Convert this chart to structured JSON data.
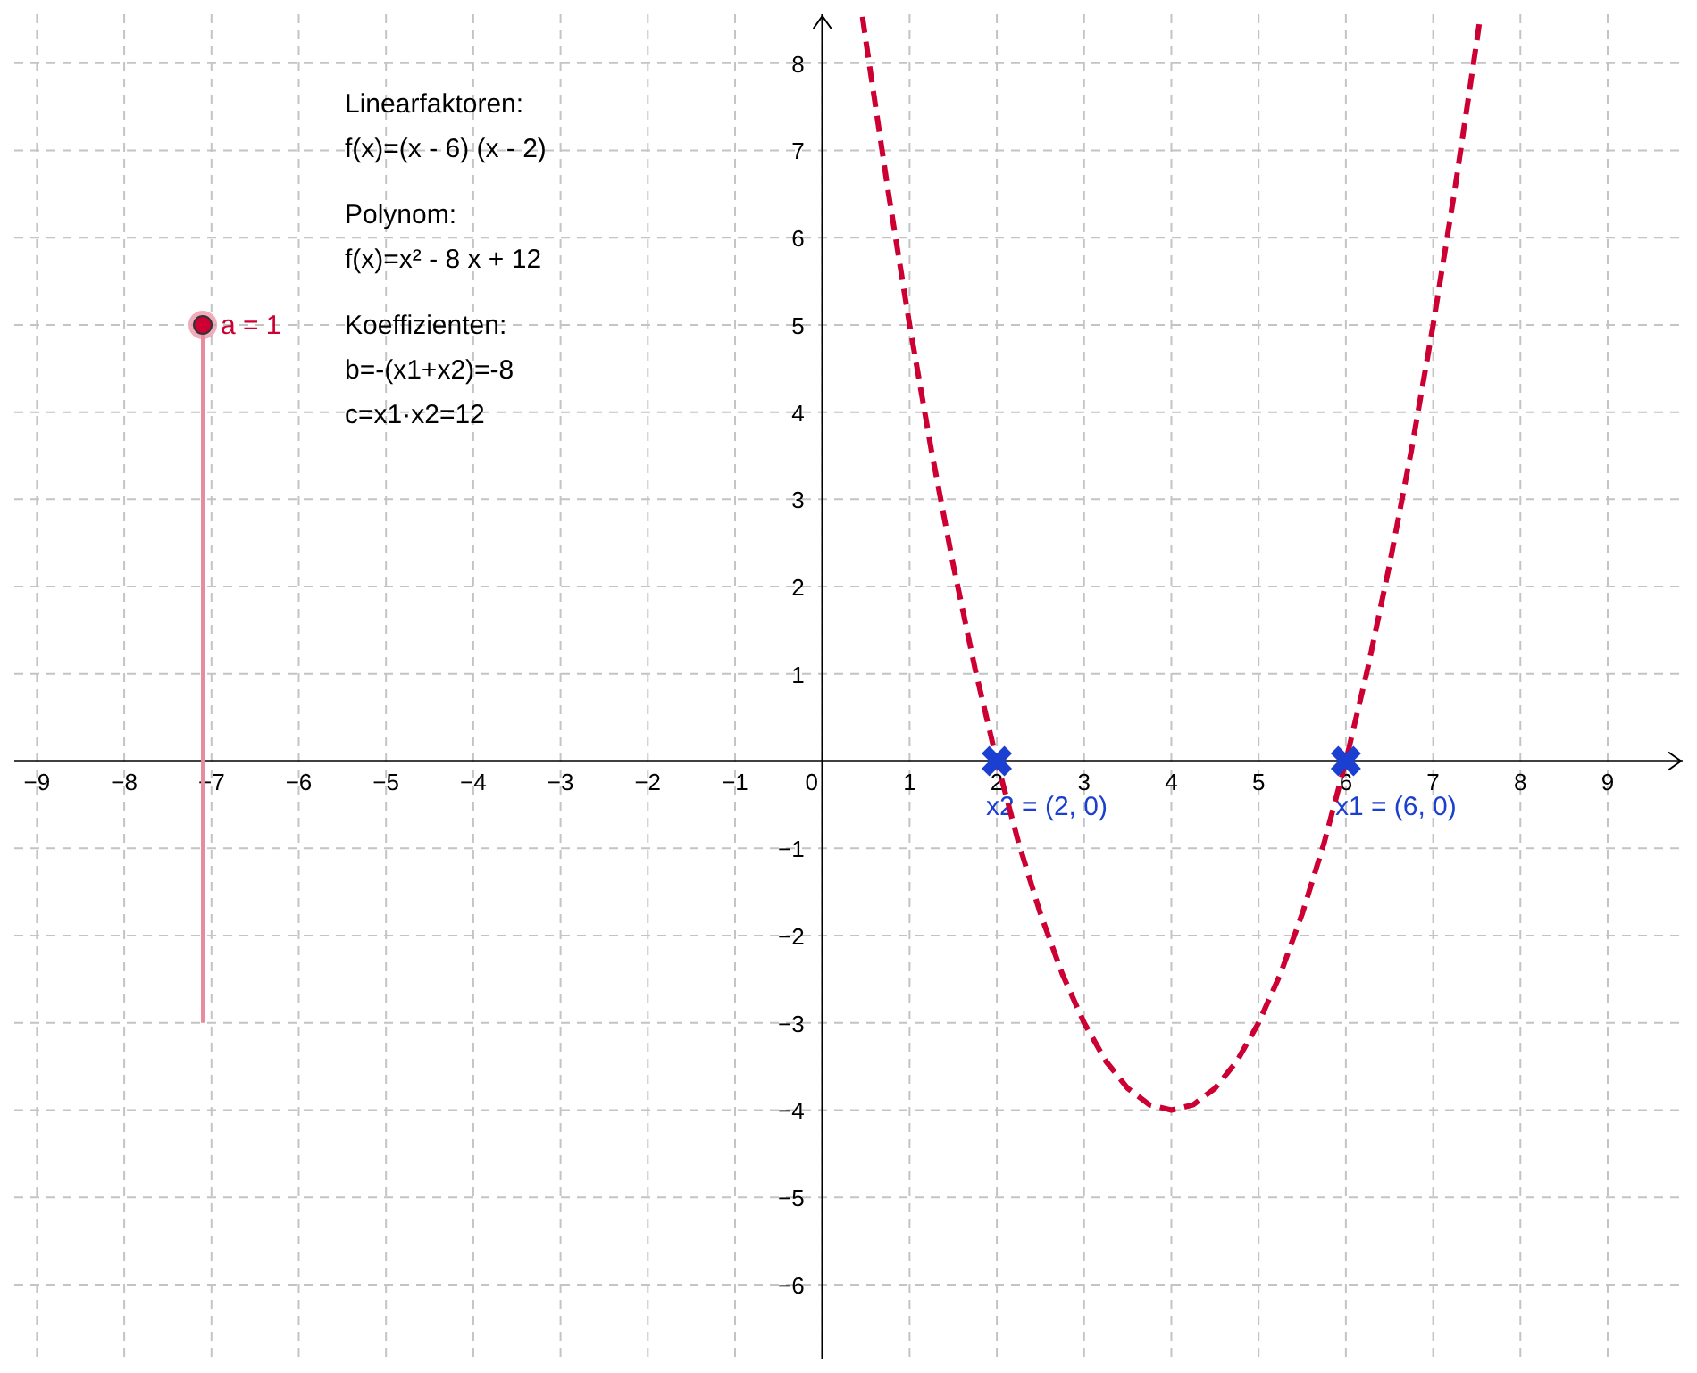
{
  "chart_data": {
    "type": "line",
    "annotations": [
      "Linearfaktoren:",
      "f(x)=(x - 6) (x - 2)",
      "Polynom:",
      "f(x)=x² - 8 x + 12",
      "Koeffizienten:",
      "b=-(x1+x2)=-8",
      "c=x1·x2=12",
      "a = 1",
      {
        "text": "x2 = (2, 0)",
        "x": 2,
        "y": 0
      },
      {
        "text": "x1 = (6, 0)",
        "x": 6,
        "y": 0
      }
    ],
    "series": [
      {
        "color": "#cc0033",
        "line_style": "dashed",
        "marker": "none",
        "x": [
          0.46,
          0.5,
          0.75,
          1,
          1.25,
          1.5,
          1.75,
          2,
          2.25,
          2.5,
          2.75,
          3,
          3.25,
          3.5,
          3.75,
          4,
          4.25,
          4.5,
          4.75,
          5,
          5.25,
          5.5,
          5.75,
          6,
          6.25,
          6.5,
          6.75,
          7,
          7.25,
          7.5,
          7.54
        ],
        "values": [
          8.53,
          8.25,
          6.56,
          5,
          3.56,
          2.25,
          1.06,
          0,
          -0.94,
          -1.75,
          -2.44,
          -3,
          -3.44,
          -3.75,
          -3.94,
          -4,
          -3.94,
          -3.75,
          -3.44,
          -3,
          -2.44,
          -1.75,
          -0.94,
          0,
          1.06,
          2.25,
          3.56,
          5,
          6.56,
          8.25,
          8.53
        ]
      },
      {
        "type": "scatter",
        "color": "#1b3fd0",
        "marker": "cross",
        "x": [
          2,
          6
        ],
        "values": [
          0,
          0
        ]
      }
    ],
    "xlim": [
      -9.26,
      9.86
    ],
    "ylim": [
      -6.85,
      8.56
    ],
    "xticks": [
      {
        "value": -9,
        "label": "−9"
      },
      {
        "value": -8,
        "label": "−8"
      },
      {
        "value": -7,
        "label": "−7"
      },
      {
        "value": -6,
        "label": "−6"
      },
      {
        "value": -5,
        "label": "−5"
      },
      {
        "value": -4,
        "label": "−4"
      },
      {
        "value": -3,
        "label": "−3"
      },
      {
        "value": -2,
        "label": "−2"
      },
      {
        "value": -1,
        "label": "−1"
      },
      0,
      1,
      2,
      3,
      4,
      5,
      6,
      7,
      8,
      9
    ],
    "yticks": [
      {
        "value": -6,
        "label": "−6"
      },
      {
        "value": -5,
        "label": "−5"
      },
      {
        "value": -4,
        "label": "−4"
      },
      {
        "value": -3,
        "label": "−3"
      },
      {
        "value": -2,
        "label": "−2"
      },
      {
        "value": -1,
        "label": "−1"
      },
      1,
      2,
      3,
      4,
      5,
      6,
      7,
      8
    ],
    "grid": true
  }
}
